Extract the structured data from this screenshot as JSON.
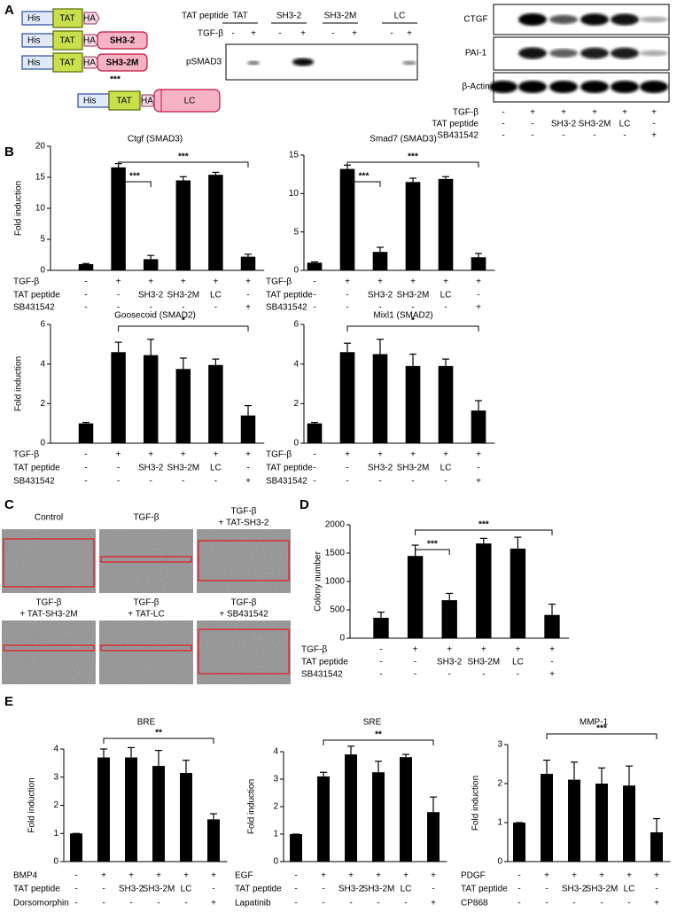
{
  "panel_labels": [
    "A",
    "B",
    "C",
    "D",
    "E"
  ],
  "constructs": {
    "his": "His",
    "tat": "TAT",
    "ha": "HA",
    "inserts": [
      "SH3-2",
      "SH3-2M",
      "LC"
    ],
    "mutation_mark": "***"
  },
  "blot_pSMAD3": {
    "header_label": "TAT peptide",
    "groups": [
      "TAT",
      "SH3-2",
      "SH3-2M",
      "LC"
    ],
    "treatment_label": "TGF-β",
    "treatment": [
      "-",
      "+",
      "-",
      "+",
      "-",
      "+",
      "-",
      "+"
    ],
    "band_label": "pSMAD3"
  },
  "blot_targets": {
    "bands": [
      "CTGF",
      "PAI-1",
      "β-Actin"
    ],
    "rows": [
      {
        "label": "TGF-β",
        "values": [
          "-",
          "+",
          "+",
          "+",
          "+",
          "+"
        ]
      },
      {
        "label": "TAT peptide",
        "values": [
          "-",
          "-",
          "SH3-2",
          "SH3-2M",
          "LC",
          "-"
        ]
      },
      {
        "label": "SB431542",
        "values": [
          "-",
          "-",
          "-",
          "-",
          "-",
          "+"
        ]
      }
    ]
  },
  "micrographs": [
    {
      "caption": [
        "Control"
      ]
    },
    {
      "caption": [
        "TGF-β"
      ]
    },
    {
      "caption": [
        "TGF-β",
        "+ TAT-SH3-2"
      ]
    },
    {
      "caption": [
        "TGF-β",
        "+ TAT-SH3-2M"
      ]
    },
    {
      "caption": [
        "TGF-β",
        "+ TAT-LC"
      ]
    },
    {
      "caption": [
        "TGF-β",
        "+ SB431542"
      ]
    }
  ],
  "chart_data": [
    {
      "type": "bar",
      "title": "Ctgf (SMAD3)",
      "ylabel": "Fold induction",
      "ylim": [
        0,
        20
      ],
      "yticks": [
        0,
        5,
        10,
        15,
        20
      ],
      "values": [
        1,
        16.6,
        1.8,
        14.5,
        15.4,
        2.2
      ],
      "errors": [
        0.1,
        0.6,
        0.6,
        0.6,
        0.4,
        0.4
      ],
      "color": "#000000",
      "conditions": [
        {
          "label": "TGF-β",
          "values": [
            "-",
            "+",
            "+",
            "+",
            "+",
            "+"
          ]
        },
        {
          "label": "TAT peptide",
          "values": [
            "-",
            "-",
            "SH3-2",
            "SH3-2M",
            "LC",
            "-"
          ]
        },
        {
          "label": "SB431542",
          "values": [
            "-",
            "-",
            "-",
            "-",
            "-",
            "+"
          ]
        }
      ],
      "significance": [
        {
          "from": 1,
          "to": 5,
          "label": "***"
        },
        {
          "from": 1,
          "to": 2,
          "label": "***"
        }
      ]
    },
    {
      "type": "bar",
      "title": "Smad7 (SMAD3)",
      "ylim": [
        0,
        15
      ],
      "yticks": [
        0,
        5,
        10,
        15
      ],
      "values": [
        1,
        13.2,
        2.4,
        11.5,
        11.9,
        1.7
      ],
      "errors": [
        0.1,
        0.5,
        0.6,
        0.5,
        0.3,
        0.5
      ],
      "color": "#000000",
      "conditions": [
        {
          "label": "TGF-β",
          "values": [
            "-",
            "+",
            "+",
            "+",
            "+",
            "+"
          ]
        },
        {
          "label": "TAT peptide",
          "values": [
            "-",
            "-",
            "SH3-2",
            "SH3-2M",
            "LC",
            "-"
          ]
        },
        {
          "label": "SB431542",
          "values": [
            "-",
            "-",
            "-",
            "-",
            "-",
            "+"
          ]
        }
      ],
      "significance": [
        {
          "from": 1,
          "to": 5,
          "label": "***"
        },
        {
          "from": 1,
          "to": 2,
          "label": "***"
        }
      ]
    },
    {
      "type": "bar",
      "title": "Goosecoid (SMAD2)",
      "ylabel": "Fold induction",
      "ylim": [
        0,
        6
      ],
      "yticks": [
        0,
        2,
        4,
        6
      ],
      "values": [
        1,
        4.6,
        4.45,
        3.75,
        3.95,
        1.4
      ],
      "errors": [
        0.05,
        0.5,
        0.8,
        0.55,
        0.3,
        0.5
      ],
      "color": "#000000",
      "conditions": [
        {
          "label": "TGF-β",
          "values": [
            "-",
            "+",
            "+",
            "+",
            "+",
            "+"
          ]
        },
        {
          "label": "TAT peptide",
          "values": [
            "-",
            "-",
            "SH3-2",
            "SH3-2M",
            "LC",
            "-"
          ]
        },
        {
          "label": "SB431542",
          "values": [
            "-",
            "-",
            "-",
            "-",
            "-",
            "+"
          ]
        }
      ],
      "significance": [
        {
          "from": 1,
          "to": 5,
          "label": "*"
        }
      ]
    },
    {
      "type": "bar",
      "title": "Mixl1 (SMAD2)",
      "ylim": [
        0,
        6
      ],
      "yticks": [
        0,
        2,
        4,
        6
      ],
      "values": [
        1,
        4.6,
        4.5,
        3.9,
        3.9,
        1.65
      ],
      "errors": [
        0.05,
        0.45,
        0.75,
        0.6,
        0.35,
        0.5
      ],
      "color": "#000000",
      "conditions": [
        {
          "label": "TGF-β",
          "values": [
            "-",
            "+",
            "+",
            "+",
            "+",
            "+"
          ]
        },
        {
          "label": "TAT peptide",
          "values": [
            "-",
            "-",
            "SH3-2",
            "SH3-2M",
            "LC",
            "-"
          ]
        },
        {
          "label": "SB431542",
          "values": [
            "-",
            "-",
            "-",
            "-",
            "-",
            "+"
          ]
        }
      ],
      "significance": [
        {
          "from": 1,
          "to": 5,
          "label": "*"
        }
      ]
    },
    {
      "type": "bar",
      "ylabel": "Colony number",
      "ylim": [
        0,
        2000
      ],
      "yticks": [
        0,
        500,
        1000,
        1500,
        2000
      ],
      "values": [
        360,
        1450,
        670,
        1670,
        1580,
        410
      ],
      "errors": [
        100,
        190,
        120,
        90,
        200,
        190
      ],
      "color": "#000000",
      "conditions": [
        {
          "label": "TGF-β",
          "values": [
            "-",
            "+",
            "+",
            "+",
            "+",
            "+"
          ]
        },
        {
          "label": "TAT peptide",
          "values": [
            "-",
            "-",
            "SH3-2",
            "SH3-2M",
            "LC",
            "-"
          ]
        },
        {
          "label": "SB431542",
          "values": [
            "-",
            "-",
            "-",
            "-",
            "-",
            "+"
          ]
        }
      ],
      "significance": [
        {
          "from": 1,
          "to": 5,
          "label": "***"
        },
        {
          "from": 1,
          "to": 2,
          "label": "***"
        }
      ]
    },
    {
      "type": "bar",
      "title": "BRE",
      "ylabel": "Fold induction",
      "ylim": [
        0,
        4
      ],
      "yticks": [
        0,
        1,
        2,
        3,
        4
      ],
      "values": [
        1,
        3.7,
        3.7,
        3.4,
        3.15,
        1.5
      ],
      "errors": [
        0,
        0.3,
        0.35,
        0.55,
        0.45,
        0.2
      ],
      "color": "#000000",
      "conditions": [
        {
          "label": "BMP4",
          "values": [
            "-",
            "+",
            "+",
            "+",
            "+",
            "+"
          ]
        },
        {
          "label": "TAT peptide",
          "values": [
            "-",
            "-",
            "SH3-2",
            "SH3-2M",
            "LC",
            "-"
          ]
        },
        {
          "label": "Dorsomorphin",
          "values": [
            "-",
            "-",
            "-",
            "-",
            "-",
            "+"
          ]
        }
      ],
      "significance": [
        {
          "from": 1,
          "to": 5,
          "label": "**"
        }
      ]
    },
    {
      "type": "bar",
      "title": "SRE",
      "ylabel": "Fold induction",
      "ylim": [
        0,
        4
      ],
      "yticks": [
        0,
        1,
        2,
        3,
        4
      ],
      "values": [
        1,
        3.1,
        3.9,
        3.25,
        3.8,
        1.8
      ],
      "errors": [
        0,
        0.15,
        0.3,
        0.4,
        0.1,
        0.55
      ],
      "color": "#000000",
      "conditions": [
        {
          "label": "EGF",
          "values": [
            "-",
            "+",
            "+",
            "+",
            "+",
            "+"
          ]
        },
        {
          "label": "TAT peptide",
          "values": [
            "-",
            "-",
            "SH3-2",
            "SH3-2M",
            "LC",
            "-"
          ]
        },
        {
          "label": "Lapatinib",
          "values": [
            "-",
            "-",
            "-",
            "-",
            "-",
            "+"
          ]
        }
      ],
      "significance": [
        {
          "from": 1,
          "to": 5,
          "label": "**"
        }
      ]
    },
    {
      "type": "bar",
      "title": "MMP-1",
      "ylabel": "Fold induction",
      "ylim": [
        0,
        3
      ],
      "yticks": [
        0,
        1,
        2,
        3
      ],
      "values": [
        1,
        2.25,
        2.1,
        2.0,
        1.95,
        0.75
      ],
      "errors": [
        0,
        0.35,
        0.45,
        0.4,
        0.5,
        0.35
      ],
      "color": "#000000",
      "conditions": [
        {
          "label": "PDGF",
          "values": [
            "-",
            "+",
            "+",
            "+",
            "+",
            "+"
          ]
        },
        {
          "label": "TAT peptide",
          "values": [
            "-",
            "-",
            "SH3-2",
            "SH3-2M",
            "LC",
            "-"
          ]
        },
        {
          "label": "CP868",
          "values": [
            "-",
            "-",
            "-",
            "-",
            "-",
            "+"
          ]
        }
      ],
      "significance": [
        {
          "from": 1,
          "to": 5,
          "label": "***"
        }
      ]
    }
  ]
}
